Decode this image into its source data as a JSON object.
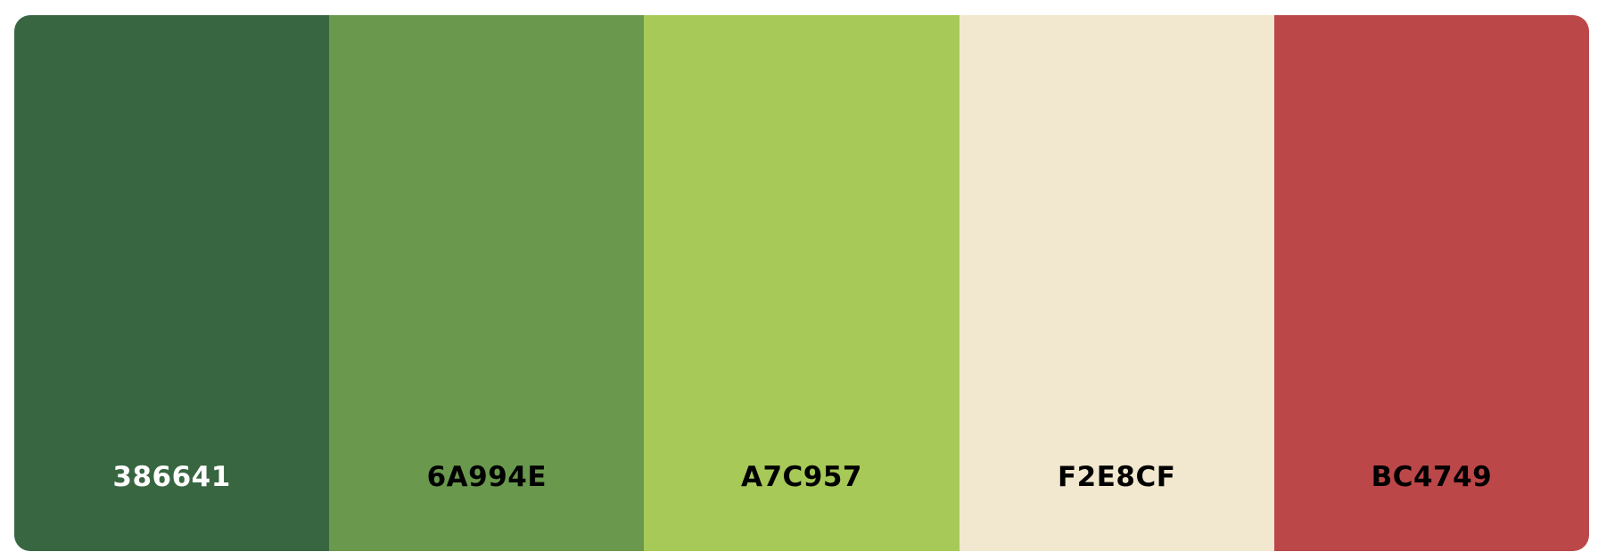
{
  "palette": {
    "swatches": [
      {
        "hex": "386641",
        "color": "#386641",
        "text_color": "#ffffff"
      },
      {
        "hex": "6A994E",
        "color": "#6A994E",
        "text_color": "#000000"
      },
      {
        "hex": "A7C957",
        "color": "#A7C957",
        "text_color": "#000000"
      },
      {
        "hex": "F2E8CF",
        "color": "#F2E8CF",
        "text_color": "#000000"
      },
      {
        "hex": "BC4749",
        "color": "#BC4749",
        "text_color": "#000000"
      }
    ]
  }
}
